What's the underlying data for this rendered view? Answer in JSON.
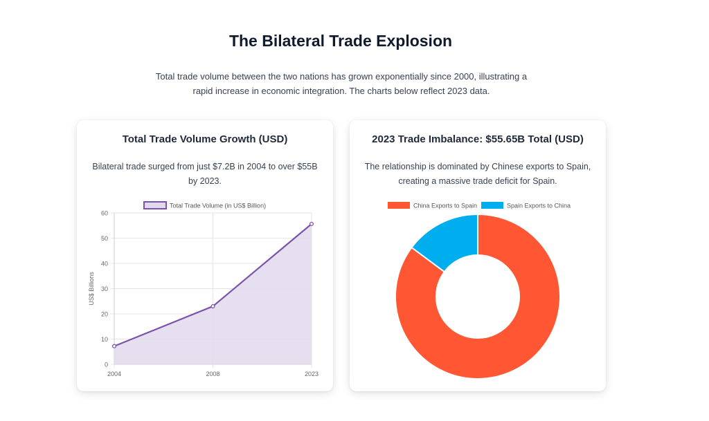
{
  "header": {
    "title": "The Bilateral Trade Explosion",
    "subtitle": "Total trade volume between the two nations has grown exponentially since 2000, illustrating a rapid increase in economic integration. The charts below reflect 2023 data."
  },
  "cards": {
    "volume": {
      "title": "Total Trade Volume Growth (USD)",
      "description": "Bilateral trade surged from just $7.2B in 2004 to over $55B by 2023."
    },
    "imbalance": {
      "title": "2023 Trade Imbalance: $55.65B Total (USD)",
      "description": "The relationship is dominated by Chinese exports to Spain, creating a massive trade deficit for Spain."
    }
  },
  "chart_data": [
    {
      "type": "line",
      "title": "",
      "categories": [
        "2004",
        "2008",
        "2023"
      ],
      "series": [
        {
          "name": "Total Trade Volume (in US$ Billion)",
          "values": [
            7.2,
            23,
            55.65
          ]
        }
      ],
      "xlabel": "",
      "ylabel": "US$ Billions",
      "ylim": [
        0,
        60
      ],
      "yticks": [
        0,
        10,
        20,
        30,
        40,
        50,
        60
      ],
      "grid": true,
      "legend": "top",
      "fill": true,
      "colors": {
        "line": "#7b52ab",
        "fill": "#e2d9ec"
      }
    },
    {
      "type": "pie",
      "title": "",
      "labels": [
        "China Exports to Spain",
        "Spain Exports to China"
      ],
      "values": [
        47.4,
        8.25
      ],
      "legend": "top",
      "colors": [
        "#ff5733",
        "#00aef0"
      ]
    }
  ]
}
